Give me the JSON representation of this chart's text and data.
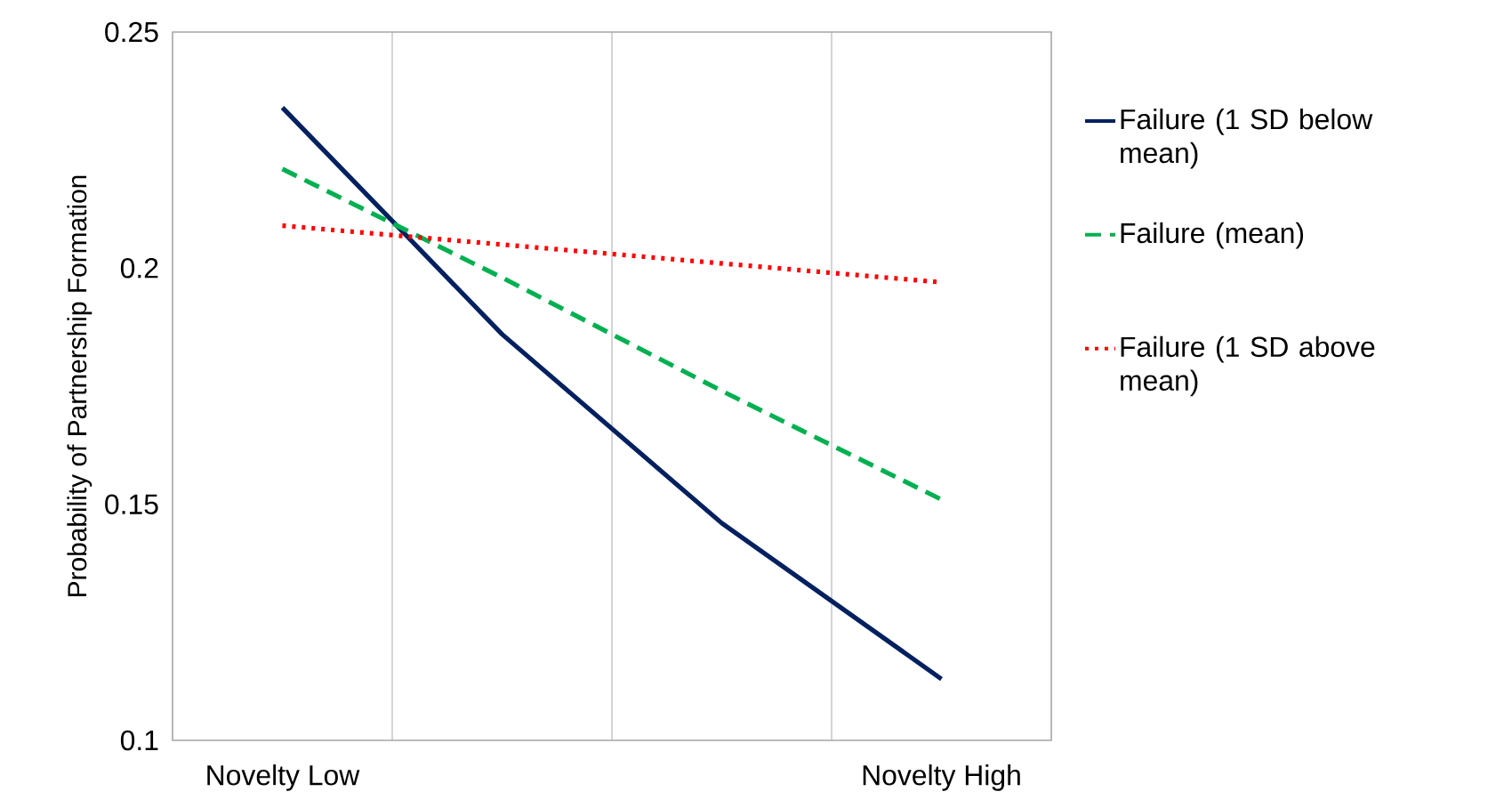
{
  "chart_data": {
    "type": "line",
    "ylabel": "Probability of Partnership  Formation",
    "categories": [
      "Novelty Low",
      null,
      null,
      "Novelty High"
    ],
    "series": [
      {
        "name": "Failure (1 SD below mean)",
        "color": "#002060",
        "line_style": "solid",
        "values": [
          0.234,
          0.186,
          0.146,
          0.113
        ]
      },
      {
        "name": "Failure (mean)",
        "color": "#00b050",
        "line_style": "dashed",
        "values": [
          0.221,
          0.198,
          0.174,
          0.151
        ]
      },
      {
        "name": "Failure (1 SD above mean)",
        "color": "#ff0000",
        "line_style": "dotted",
        "values": [
          0.209,
          0.205,
          0.201,
          0.197
        ]
      }
    ],
    "ylim": [
      0.1,
      0.25
    ],
    "yticks": [
      0.1,
      0.15,
      0.2,
      0.25
    ],
    "grid": "x",
    "legend": "right",
    "marker": "none"
  }
}
